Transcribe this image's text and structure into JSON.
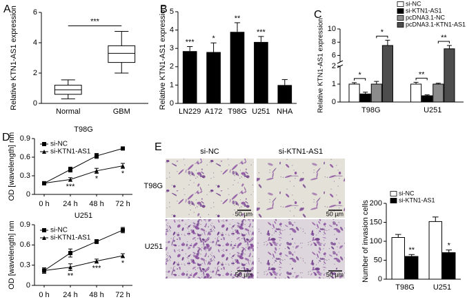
{
  "panels": [
    "A",
    "B",
    "C",
    "D",
    "E"
  ],
  "chart_data": [
    {
      "type": "box",
      "ylabel": "Relative KTN1-AS1 expression",
      "categories": [
        "Normal",
        "GBM"
      ],
      "boxes": [
        {
          "whislo": 0.3,
          "q1": 0.6,
          "med": 0.9,
          "q3": 1.2,
          "whishi": 1.55
        },
        {
          "whislo": 2.0,
          "q1": 2.7,
          "med": 3.3,
          "q3": 3.8,
          "whishi": 4.75
        }
      ],
      "significance": "***",
      "ylim": [
        0,
        6
      ],
      "yticks": [
        0,
        2,
        4,
        6
      ],
      "color": "#ffffff"
    },
    {
      "type": "bar",
      "ylabel": "Relative KTN1-AS1 expression",
      "categories": [
        "LN229",
        "A172",
        "T98G",
        "U251",
        "NHA"
      ],
      "values": [
        2.85,
        2.8,
        3.9,
        3.35,
        1.0
      ],
      "errors": [
        0.25,
        0.5,
        0.5,
        0.3,
        0.3
      ],
      "significance": [
        "***",
        "*",
        "**",
        "***",
        null
      ],
      "color": "#000000",
      "ylim": [
        0,
        5
      ],
      "yticks": [
        0,
        1,
        2,
        3,
        4,
        5
      ]
    },
    {
      "type": "broken_bar",
      "ylabel": "Relative KTN1-AS1 expression",
      "categories": [
        "T98G",
        "U251"
      ],
      "series": [
        {
          "name": "si-NC",
          "color": "#ffffff",
          "values": [
            1.0,
            1.0
          ],
          "errors": [
            0.08,
            0.1
          ]
        },
        {
          "name": "si-KTN1-AS1",
          "color": "#000000",
          "values": [
            0.45,
            0.35
          ],
          "errors": [
            0.1,
            0.05
          ]
        },
        {
          "name": "pcDNA3.1-NC",
          "color": "#8c8c8c",
          "values": [
            1.0,
            1.0
          ],
          "errors": [
            0.15,
            0.05
          ]
        },
        {
          "name": "pcDNA3.1-KTN1-AS1",
          "color": "#4d4d4d",
          "values": [
            7.5,
            7.0
          ],
          "errors": [
            0.8,
            0.5
          ]
        }
      ],
      "significance": [
        [
          "*",
          "*"
        ],
        [
          "**",
          "**"
        ]
      ],
      "ylim": [
        0,
        10
      ],
      "axis_break": [
        2,
        5
      ],
      "yticks": [
        0,
        1,
        2,
        6,
        8,
        10
      ],
      "legend": "top right"
    },
    {
      "type": "line",
      "title": "T98G",
      "ylabel": "OD [wavelength] nm",
      "categories": [
        "0 h",
        "24 h",
        "48 h",
        "72 h"
      ],
      "series": [
        {
          "name": "si-NC",
          "color": "#000000",
          "marker": "square",
          "values": [
            0.18,
            0.4,
            0.62,
            0.74
          ],
          "errors": [
            0.02,
            0.04,
            0.04,
            0.02
          ]
        },
        {
          "name": "si-KTN1-AS1",
          "color": "#000000",
          "marker": "triangle",
          "values": [
            0.18,
            0.24,
            0.38,
            0.46
          ],
          "errors": [
            0.02,
            0.03,
            0.04,
            0.04
          ]
        }
      ],
      "significance": [
        null,
        "***",
        "*",
        "*"
      ],
      "ylim": [
        0,
        0.9
      ],
      "yticks": [
        0,
        0.3,
        0.6,
        0.9
      ],
      "legend": "upper left"
    },
    {
      "type": "line",
      "title": "U251",
      "ylabel": "OD [wavelength] nm",
      "categories": [
        "0 h",
        "24 h",
        "48 h",
        "72 h"
      ],
      "series": [
        {
          "name": "si-NC",
          "color": "#000000",
          "marker": "square",
          "values": [
            0.22,
            0.48,
            0.65,
            0.82
          ],
          "errors": [
            0.04,
            0.06,
            0.03,
            0.04
          ]
        },
        {
          "name": "si-KTN1-AS1",
          "color": "#000000",
          "marker": "triangle",
          "values": [
            0.22,
            0.27,
            0.36,
            0.44
          ],
          "errors": [
            0.04,
            0.05,
            0.03,
            0.03
          ]
        }
      ],
      "significance": [
        null,
        "**",
        "***",
        "*"
      ],
      "ylim": [
        0,
        0.9
      ],
      "yticks": [
        0,
        0.3,
        0.6,
        0.9
      ],
      "legend": "upper left"
    },
    {
      "type": "grouped_bar",
      "ylabel": "Number of invasion cells",
      "categories": [
        "T98G",
        "U251"
      ],
      "series": [
        {
          "name": "si-NC",
          "color": "#ffffff",
          "values": [
            110,
            152
          ],
          "errors": [
            8,
            12
          ]
        },
        {
          "name": "si-KTN1-AS1",
          "color": "#000000",
          "values": [
            60,
            70
          ],
          "errors": [
            5,
            7
          ]
        }
      ],
      "significance": [
        "**",
        "*"
      ],
      "ylim": [
        0,
        200
      ],
      "yticks": [
        0,
        50,
        100,
        150,
        200
      ],
      "legend": "top"
    }
  ],
  "image_grid": {
    "columns": [
      "si-NC",
      "si-KTN1-AS1"
    ],
    "rows": [
      "T98G",
      "U251"
    ],
    "scale_bar": "50 µm"
  }
}
